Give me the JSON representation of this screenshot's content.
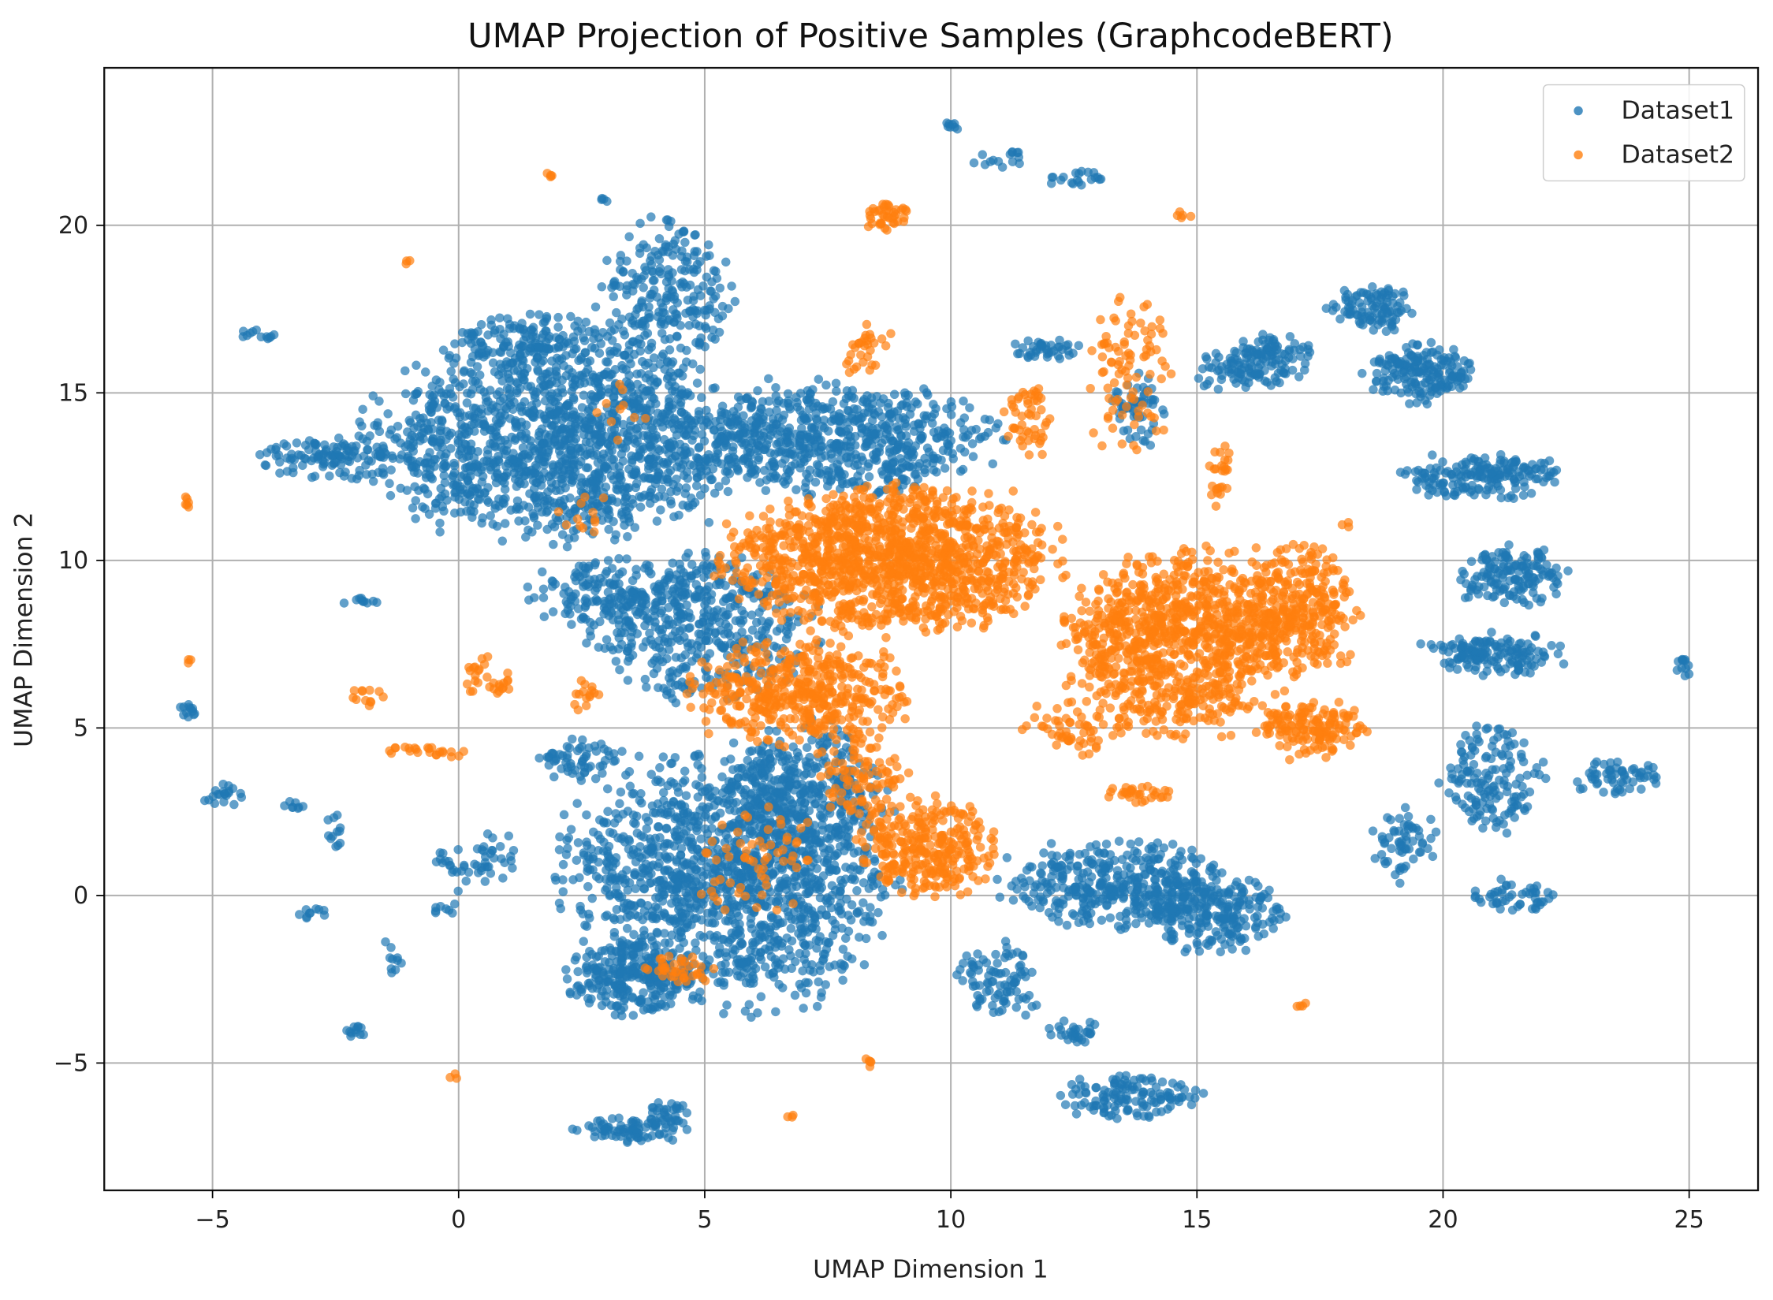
{
  "chart_data": {
    "type": "scatter",
    "title": "UMAP Projection of Positive Samples (GraphcodeBERT)",
    "xlabel": "UMAP Dimension 1",
    "ylabel": "UMAP Dimension 2",
    "xlim": [
      -7.2,
      26.4
    ],
    "ylim": [
      -8.8,
      24.7
    ],
    "xticks": [
      -5,
      0,
      5,
      10,
      15,
      20,
      25
    ],
    "yticks": [
      -5,
      0,
      5,
      10,
      15,
      20
    ],
    "grid": true,
    "legend_position": "top-right",
    "point_alpha": 0.7,
    "series": [
      {
        "name": "Dataset1",
        "color": "#1f77b4",
        "clusters_note": "cx, cy, rx, ry, n (data units)",
        "clusters": [
          [
            2,
            13.5,
            3.4,
            2.6,
            1400
          ],
          [
            7.5,
            13.6,
            3.0,
            1.5,
            700
          ],
          [
            -2.5,
            13.0,
            1.5,
            0.6,
            120
          ],
          [
            4.2,
            17.8,
            1.2,
            2.2,
            260
          ],
          [
            1.5,
            16.5,
            1.5,
            0.8,
            150
          ],
          [
            5,
            8,
            2.0,
            2.0,
            450
          ],
          [
            3,
            9,
            1.5,
            1.0,
            150
          ],
          [
            5.5,
            0.5,
            3.0,
            3.5,
            1400
          ],
          [
            3.5,
            -2.5,
            1.2,
            1.0,
            250
          ],
          [
            7,
            3,
            1.5,
            2.0,
            300
          ],
          [
            13.5,
            0.3,
            2.2,
            1.2,
            400
          ],
          [
            15.3,
            -0.5,
            1.3,
            1.0,
            220
          ],
          [
            11,
            -2.5,
            0.8,
            1.0,
            90
          ],
          [
            12.5,
            -4,
            0.5,
            0.4,
            30
          ],
          [
            13.6,
            -6,
            1.3,
            0.6,
            130
          ],
          [
            3.5,
            -7,
            1.0,
            0.35,
            80
          ],
          [
            4.2,
            -6.5,
            0.4,
            0.4,
            30
          ],
          [
            16.5,
            16.0,
            0.8,
            0.7,
            110
          ],
          [
            18.6,
            17.5,
            0.8,
            0.6,
            100
          ],
          [
            19.5,
            15.6,
            1.0,
            0.8,
            180
          ],
          [
            20.8,
            12.5,
            1.5,
            0.6,
            180
          ],
          [
            21.4,
            9.5,
            1.0,
            0.8,
            150
          ],
          [
            21.0,
            7.2,
            1.3,
            0.6,
            150
          ],
          [
            21.0,
            3.5,
            0.9,
            1.5,
            150
          ],
          [
            19.2,
            1.5,
            0.6,
            1.0,
            60
          ],
          [
            21.5,
            0.0,
            0.8,
            0.4,
            50
          ],
          [
            23.5,
            3.5,
            0.8,
            0.5,
            60
          ],
          [
            24.9,
            6.8,
            0.15,
            0.3,
            12
          ],
          [
            15.6,
            15.6,
            0.6,
            0.6,
            40
          ],
          [
            13.8,
            14.5,
            0.5,
            1.0,
            60
          ],
          [
            12.0,
            16.3,
            0.7,
            0.3,
            40
          ],
          [
            -5.5,
            5.5,
            0.2,
            0.2,
            12
          ],
          [
            -4.8,
            3.0,
            0.4,
            0.3,
            20
          ],
          [
            -3.3,
            2.7,
            0.2,
            0.2,
            8
          ],
          [
            -2.5,
            2.0,
            0.2,
            0.5,
            12
          ],
          [
            -3.0,
            -0.5,
            0.3,
            0.2,
            10
          ],
          [
            -2.1,
            -4.1,
            0.2,
            0.3,
            12
          ],
          [
            -1.4,
            -2.0,
            0.2,
            0.6,
            10
          ],
          [
            -0.3,
            -0.4,
            0.3,
            0.2,
            8
          ],
          [
            -4.2,
            16.7,
            0.4,
            0.2,
            12
          ],
          [
            -2.0,
            8.8,
            0.4,
            0.1,
            10
          ],
          [
            10.0,
            23.0,
            0.2,
            0.2,
            8
          ],
          [
            11.0,
            22.0,
            0.5,
            0.3,
            15
          ],
          [
            12.6,
            21.4,
            0.6,
            0.2,
            20
          ],
          [
            3.0,
            20.8,
            0.1,
            0.1,
            4
          ],
          [
            2.5,
            4,
            0.8,
            0.6,
            60
          ],
          [
            0.5,
            1,
            1,
            0.8,
            50
          ]
        ]
      },
      {
        "name": "Dataset2",
        "color": "#ff7f0e",
        "clusters": [
          [
            8.8,
            10.0,
            3.0,
            2.0,
            1300
          ],
          [
            7.0,
            6.0,
            2.0,
            1.5,
            450
          ],
          [
            14.5,
            7.5,
            2.0,
            2.5,
            900
          ],
          [
            17.0,
            8.5,
            1.2,
            1.8,
            350
          ],
          [
            17.3,
            5.0,
            1.0,
            0.8,
            150
          ],
          [
            9.5,
            1.5,
            1.3,
            1.3,
            300
          ],
          [
            8.2,
            3.5,
            0.8,
            1.0,
            80
          ],
          [
            4.5,
            -2.2,
            0.6,
            0.4,
            40
          ],
          [
            13.6,
            15.5,
            0.8,
            2.2,
            90
          ],
          [
            8.7,
            20.3,
            0.4,
            0.4,
            40
          ],
          [
            8.3,
            16.3,
            0.5,
            0.8,
            30
          ],
          [
            11.6,
            14.2,
            0.5,
            1.0,
            50
          ],
          [
            15.5,
            12.8,
            0.2,
            0.6,
            15
          ],
          [
            12.5,
            5.0,
            1.0,
            0.7,
            60
          ],
          [
            13.7,
            3.0,
            0.7,
            0.3,
            30
          ],
          [
            -5.5,
            11.8,
            0.1,
            0.2,
            6
          ],
          [
            -5.4,
            7.0,
            0.1,
            0.1,
            3
          ],
          [
            -1.0,
            18.9,
            0.1,
            0.1,
            3
          ],
          [
            1.8,
            21.5,
            0.1,
            0.1,
            4
          ],
          [
            -1.8,
            6.0,
            0.4,
            0.3,
            12
          ],
          [
            -1.0,
            4.3,
            0.6,
            0.2,
            15
          ],
          [
            0.6,
            6.5,
            0.5,
            0.6,
            30
          ],
          [
            -0.2,
            4.2,
            0.3,
            0.3,
            8
          ],
          [
            2.5,
            6.0,
            0.4,
            0.4,
            15
          ],
          [
            -0.1,
            -5.4,
            0.1,
            0.1,
            3
          ],
          [
            6.8,
            -6.6,
            0.1,
            0.1,
            3
          ],
          [
            8.3,
            -5.0,
            0.2,
            0.2,
            5
          ],
          [
            17.1,
            -3.3,
            0.15,
            0.1,
            4
          ],
          [
            14.7,
            20.3,
            0.2,
            0.2,
            5
          ],
          [
            18.0,
            11.0,
            0.2,
            0.2,
            3
          ],
          [
            2.5,
            11.5,
            0.6,
            0.6,
            12
          ],
          [
            3.3,
            14.5,
            0.6,
            1.0,
            10
          ],
          [
            6,
            1,
            1.2,
            1.5,
            60
          ],
          [
            15.5,
            12,
            0.3,
            0.5,
            10
          ]
        ]
      }
    ]
  }
}
